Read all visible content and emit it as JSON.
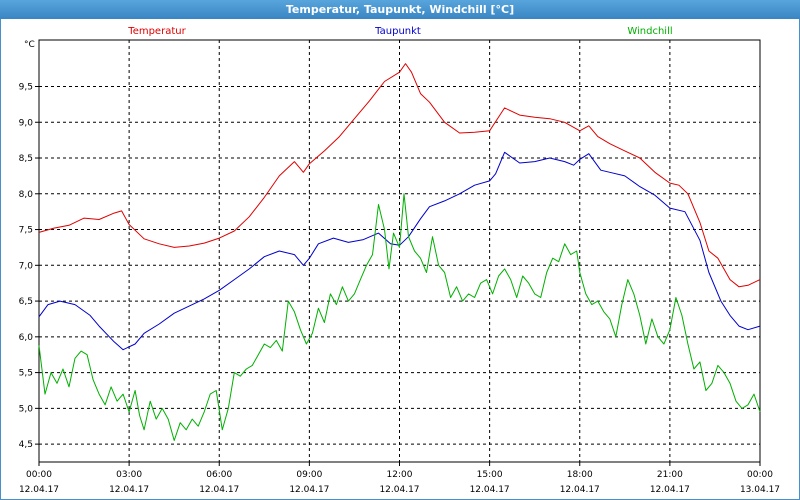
{
  "window": {
    "title": "Temperatur, Taupunkt, Windchill [°C]"
  },
  "chart_data": {
    "type": "line",
    "title": "Temperatur, Taupunkt, Windchill [°C]",
    "ylabel": "°C",
    "ylim": [
      4.25,
      10.15
    ],
    "yticks": [
      "4,5",
      "5,0",
      "5,5",
      "6,0",
      "6,5",
      "7,0",
      "7,5",
      "8,0",
      "8,5",
      "9,0",
      "9,5"
    ],
    "xlim": [
      0,
      24
    ],
    "xticks": [
      {
        "time": "00:00",
        "date": "12.04.17"
      },
      {
        "time": "03:00",
        "date": "12.04.17"
      },
      {
        "time": "06:00",
        "date": "12.04.17"
      },
      {
        "time": "09:00",
        "date": "12.04.17"
      },
      {
        "time": "12:00",
        "date": "12.04.17"
      },
      {
        "time": "15:00",
        "date": "12.04.17"
      },
      {
        "time": "18:00",
        "date": "12.04.17"
      },
      {
        "time": "21:00",
        "date": "12.04.17"
      },
      {
        "time": "00:00",
        "date": "13.04.17"
      }
    ],
    "grid": true,
    "legend_position": "top",
    "series": [
      {
        "name": "Temperatur",
        "color": "#e00000",
        "points": [
          [
            0,
            7.46
          ],
          [
            0.5,
            7.52
          ],
          [
            1,
            7.56
          ],
          [
            1.5,
            7.66
          ],
          [
            2,
            7.64
          ],
          [
            2.5,
            7.73
          ],
          [
            2.75,
            7.76
          ],
          [
            3,
            7.57
          ],
          [
            3.5,
            7.37
          ],
          [
            4,
            7.3
          ],
          [
            4.5,
            7.25
          ],
          [
            5,
            7.27
          ],
          [
            5.5,
            7.31
          ],
          [
            6,
            7.38
          ],
          [
            6.5,
            7.48
          ],
          [
            7,
            7.68
          ],
          [
            7.5,
            7.95
          ],
          [
            8,
            8.25
          ],
          [
            8.5,
            8.45
          ],
          [
            8.8,
            8.3
          ],
          [
            9,
            8.42
          ],
          [
            9.5,
            8.6
          ],
          [
            10,
            8.8
          ],
          [
            10.5,
            9.05
          ],
          [
            11,
            9.3
          ],
          [
            11.5,
            9.57
          ],
          [
            12,
            9.7
          ],
          [
            12.2,
            9.82
          ],
          [
            12.4,
            9.7
          ],
          [
            12.7,
            9.4
          ],
          [
            13,
            9.28
          ],
          [
            13.5,
            9.0
          ],
          [
            14,
            8.85
          ],
          [
            14.5,
            8.86
          ],
          [
            15,
            8.88
          ],
          [
            15.5,
            9.2
          ],
          [
            16,
            9.1
          ],
          [
            16.5,
            9.07
          ],
          [
            17,
            9.05
          ],
          [
            17.5,
            9.0
          ],
          [
            18,
            8.88
          ],
          [
            18.3,
            8.95
          ],
          [
            18.6,
            8.8
          ],
          [
            19,
            8.7
          ],
          [
            19.5,
            8.6
          ],
          [
            20,
            8.5
          ],
          [
            20.5,
            8.3
          ],
          [
            21,
            8.15
          ],
          [
            21.3,
            8.12
          ],
          [
            21.6,
            8.0
          ],
          [
            22,
            7.6
          ],
          [
            22.3,
            7.2
          ],
          [
            22.6,
            7.1
          ],
          [
            23,
            6.8
          ],
          [
            23.3,
            6.7
          ],
          [
            23.6,
            6.72
          ],
          [
            24,
            6.8
          ]
        ]
      },
      {
        "name": "Taupunkt",
        "color": "#0000cc",
        "points": [
          [
            0,
            6.28
          ],
          [
            0.3,
            6.45
          ],
          [
            0.7,
            6.5
          ],
          [
            1.2,
            6.45
          ],
          [
            1.7,
            6.3
          ],
          [
            2,
            6.15
          ],
          [
            2.5,
            5.93
          ],
          [
            2.8,
            5.82
          ],
          [
            3.2,
            5.9
          ],
          [
            3.5,
            6.05
          ],
          [
            4,
            6.18
          ],
          [
            4.5,
            6.33
          ],
          [
            5,
            6.43
          ],
          [
            5.5,
            6.53
          ],
          [
            6,
            6.65
          ],
          [
            6.5,
            6.8
          ],
          [
            7,
            6.95
          ],
          [
            7.5,
            7.12
          ],
          [
            8,
            7.2
          ],
          [
            8.5,
            7.15
          ],
          [
            8.8,
            7.0
          ],
          [
            9,
            7.1
          ],
          [
            9.3,
            7.3
          ],
          [
            9.8,
            7.38
          ],
          [
            10.3,
            7.32
          ],
          [
            10.8,
            7.36
          ],
          [
            11.3,
            7.45
          ],
          [
            11.7,
            7.3
          ],
          [
            12,
            7.28
          ],
          [
            12.3,
            7.4
          ],
          [
            12.7,
            7.65
          ],
          [
            13,
            7.82
          ],
          [
            13.5,
            7.9
          ],
          [
            14,
            8.0
          ],
          [
            14.5,
            8.12
          ],
          [
            15,
            8.18
          ],
          [
            15.2,
            8.28
          ],
          [
            15.5,
            8.58
          ],
          [
            16,
            8.43
          ],
          [
            16.5,
            8.45
          ],
          [
            17,
            8.5
          ],
          [
            17.5,
            8.45
          ],
          [
            17.8,
            8.4
          ],
          [
            18,
            8.48
          ],
          [
            18.3,
            8.56
          ],
          [
            18.7,
            8.33
          ],
          [
            19,
            8.3
          ],
          [
            19.5,
            8.25
          ],
          [
            20,
            8.1
          ],
          [
            20.5,
            7.98
          ],
          [
            21,
            7.8
          ],
          [
            21.5,
            7.75
          ],
          [
            22,
            7.35
          ],
          [
            22.3,
            6.9
          ],
          [
            22.7,
            6.5
          ],
          [
            23,
            6.3
          ],
          [
            23.3,
            6.15
          ],
          [
            23.6,
            6.1
          ],
          [
            24,
            6.15
          ]
        ]
      },
      {
        "name": "Windchill",
        "color": "#00b000",
        "points": [
          [
            0,
            5.88
          ],
          [
            0.2,
            5.2
          ],
          [
            0.4,
            5.5
          ],
          [
            0.6,
            5.35
          ],
          [
            0.8,
            5.55
          ],
          [
            1,
            5.3
          ],
          [
            1.2,
            5.7
          ],
          [
            1.4,
            5.8
          ],
          [
            1.6,
            5.75
          ],
          [
            1.8,
            5.4
          ],
          [
            2,
            5.2
          ],
          [
            2.2,
            5.05
          ],
          [
            2.4,
            5.3
          ],
          [
            2.6,
            5.1
          ],
          [
            2.8,
            5.2
          ],
          [
            3,
            4.95
          ],
          [
            3.2,
            5.25
          ],
          [
            3.35,
            4.9
          ],
          [
            3.5,
            4.7
          ],
          [
            3.7,
            5.1
          ],
          [
            3.9,
            4.85
          ],
          [
            4.1,
            5.0
          ],
          [
            4.3,
            4.85
          ],
          [
            4.5,
            4.55
          ],
          [
            4.7,
            4.8
          ],
          [
            4.9,
            4.7
          ],
          [
            5.1,
            4.85
          ],
          [
            5.3,
            4.75
          ],
          [
            5.5,
            4.95
          ],
          [
            5.7,
            5.2
          ],
          [
            5.9,
            5.25
          ],
          [
            6.1,
            4.7
          ],
          [
            6.3,
            5.0
          ],
          [
            6.5,
            5.5
          ],
          [
            6.7,
            5.45
          ],
          [
            6.9,
            5.55
          ],
          [
            7.1,
            5.6
          ],
          [
            7.3,
            5.75
          ],
          [
            7.5,
            5.9
          ],
          [
            7.7,
            5.85
          ],
          [
            7.9,
            5.95
          ],
          [
            8.1,
            5.8
          ],
          [
            8.3,
            6.5
          ],
          [
            8.5,
            6.35
          ],
          [
            8.7,
            6.1
          ],
          [
            8.9,
            5.9
          ],
          [
            9.1,
            6.05
          ],
          [
            9.3,
            6.4
          ],
          [
            9.5,
            6.2
          ],
          [
            9.7,
            6.6
          ],
          [
            9.9,
            6.45
          ],
          [
            10.1,
            6.7
          ],
          [
            10.3,
            6.5
          ],
          [
            10.5,
            6.6
          ],
          [
            10.7,
            6.8
          ],
          [
            10.9,
            7.0
          ],
          [
            11.1,
            7.15
          ],
          [
            11.3,
            7.85
          ],
          [
            11.5,
            7.5
          ],
          [
            11.65,
            6.95
          ],
          [
            11.8,
            7.45
          ],
          [
            12,
            7.25
          ],
          [
            12.15,
            8.0
          ],
          [
            12.3,
            7.4
          ],
          [
            12.5,
            7.2
          ],
          [
            12.7,
            7.1
          ],
          [
            12.9,
            6.9
          ],
          [
            13.1,
            7.4
          ],
          [
            13.3,
            7.0
          ],
          [
            13.5,
            6.9
          ],
          [
            13.7,
            6.55
          ],
          [
            13.9,
            6.7
          ],
          [
            14.1,
            6.5
          ],
          [
            14.3,
            6.6
          ],
          [
            14.5,
            6.55
          ],
          [
            14.7,
            6.75
          ],
          [
            14.9,
            6.8
          ],
          [
            15.1,
            6.6
          ],
          [
            15.3,
            6.85
          ],
          [
            15.5,
            6.95
          ],
          [
            15.7,
            6.8
          ],
          [
            15.9,
            6.55
          ],
          [
            16.1,
            6.85
          ],
          [
            16.3,
            6.75
          ],
          [
            16.5,
            6.6
          ],
          [
            16.7,
            6.55
          ],
          [
            16.9,
            6.9
          ],
          [
            17.1,
            7.1
          ],
          [
            17.3,
            7.05
          ],
          [
            17.5,
            7.3
          ],
          [
            17.7,
            7.15
          ],
          [
            17.9,
            7.2
          ],
          [
            18,
            6.9
          ],
          [
            18.2,
            6.6
          ],
          [
            18.4,
            6.45
          ],
          [
            18.6,
            6.5
          ],
          [
            18.8,
            6.35
          ],
          [
            19,
            6.25
          ],
          [
            19.2,
            6.0
          ],
          [
            19.4,
            6.45
          ],
          [
            19.6,
            6.8
          ],
          [
            19.8,
            6.6
          ],
          [
            20,
            6.3
          ],
          [
            20.2,
            5.9
          ],
          [
            20.4,
            6.25
          ],
          [
            20.6,
            6.0
          ],
          [
            20.8,
            5.9
          ],
          [
            21,
            6.1
          ],
          [
            21.2,
            6.55
          ],
          [
            21.4,
            6.3
          ],
          [
            21.6,
            5.9
          ],
          [
            21.8,
            5.55
          ],
          [
            22,
            5.65
          ],
          [
            22.2,
            5.25
          ],
          [
            22.4,
            5.35
          ],
          [
            22.6,
            5.6
          ],
          [
            22.8,
            5.5
          ],
          [
            23,
            5.35
          ],
          [
            23.2,
            5.1
          ],
          [
            23.4,
            5.0
          ],
          [
            23.6,
            5.05
          ],
          [
            23.8,
            5.2
          ],
          [
            24,
            4.95
          ]
        ]
      }
    ]
  }
}
